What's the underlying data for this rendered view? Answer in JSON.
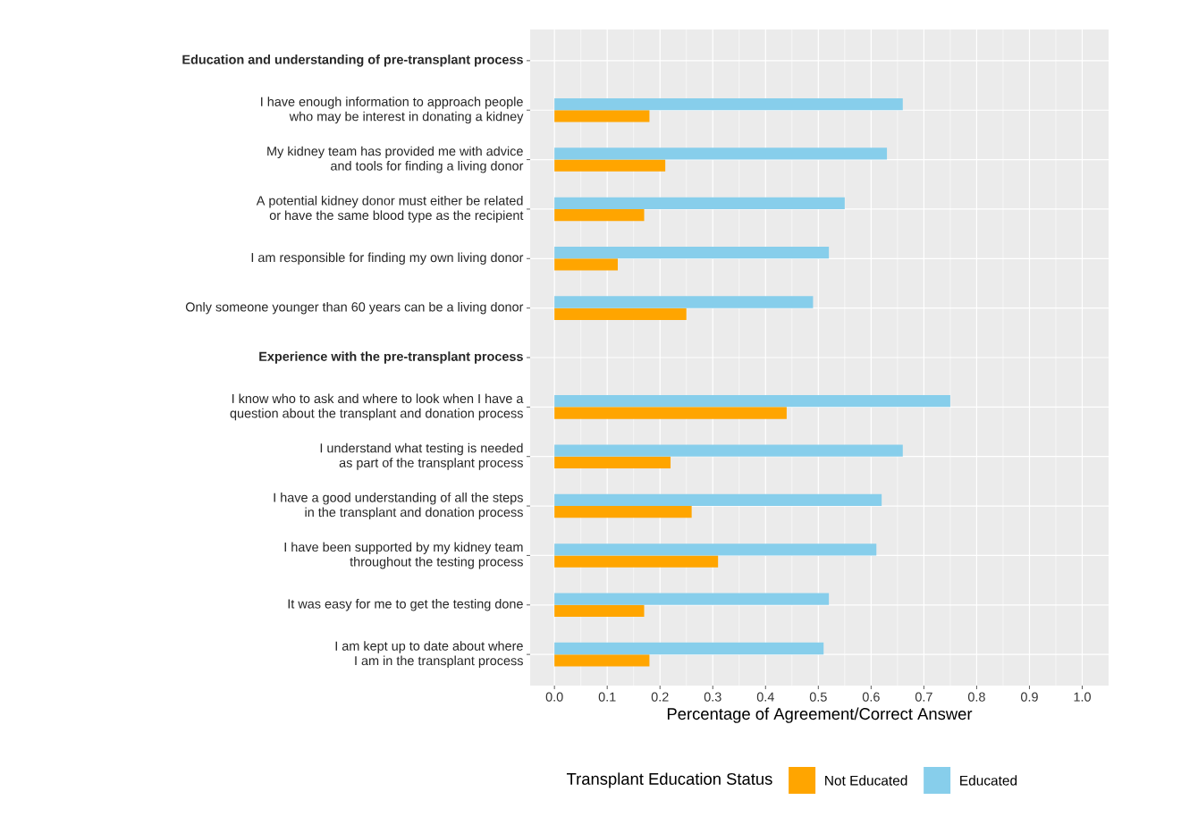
{
  "chart_data": {
    "type": "bar",
    "orientation": "horizontal",
    "categories": [
      "Education and understanding of pre-transplant process",
      "I have enough information to approach people\nwho may be interest in donating a kidney",
      "My kidney team has provided me with advice\nand tools for finding a living donor",
      "A potential kidney donor must either be related\nor have the same blood type as the recipient",
      "I am responsible for finding my own living donor",
      "Only someone younger than 60 years can be a living donor",
      "Experience with the pre-transplant process",
      "I know who to ask and where to look when I have a\nquestion about the transplant and donation process",
      "I understand what testing is needed\nas part of the transplant process",
      "I have a good understanding of all the steps\nin the transplant and donation process",
      "I have been supported by my kidney team\nthroughout the testing process",
      "It was easy for me to get the testing done",
      "I am kept up to date about where\nI am in the transplant process"
    ],
    "series": [
      {
        "name": "Not Educated",
        "color": "#ffa500",
        "values": [
          null,
          0.18,
          0.21,
          0.17,
          0.12,
          0.25,
          null,
          0.44,
          0.22,
          0.26,
          0.31,
          0.17,
          0.18
        ]
      },
      {
        "name": "Educated",
        "color": "#87ceeb",
        "values": [
          null,
          0.66,
          0.63,
          0.55,
          0.52,
          0.49,
          null,
          0.75,
          0.66,
          0.62,
          0.61,
          0.52,
          0.51
        ]
      }
    ],
    "xlabel": "Percentage of Agreement/Correct Answer",
    "legend_title": "Transplant Education Status",
    "legend": "bottom",
    "grid": true,
    "xlim": [
      -0.046,
      1.05
    ],
    "xticks": [
      {
        "value": 0,
        "label": "0.0"
      },
      0.1,
      0.2,
      0.3,
      0.4,
      0.5,
      0.6,
      0.7,
      0.8,
      0.9,
      {
        "value": 1,
        "label": "1.0"
      }
    ]
  }
}
